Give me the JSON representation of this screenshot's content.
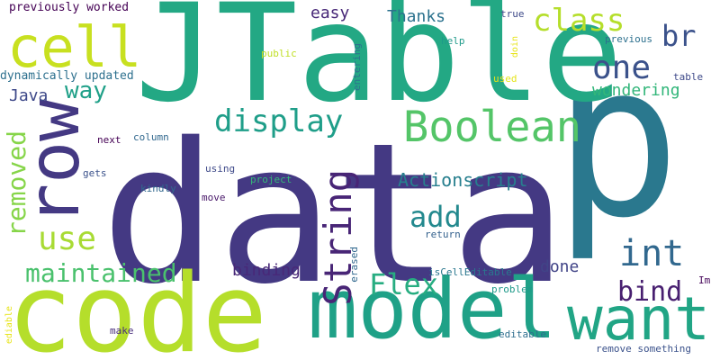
{
  "words": [
    {
      "text": "data",
      "color": "#443983"
    },
    {
      "text": "p",
      "color": "#2a788e"
    },
    {
      "text": "JTable",
      "color": "#23a884"
    },
    {
      "text": "code",
      "color": "#b5de2b"
    },
    {
      "text": "model",
      "color": "#1fa187"
    },
    {
      "text": "want",
      "color": "#21a585"
    },
    {
      "text": "row",
      "color": "#443983"
    },
    {
      "text": "cell",
      "color": "#c8e020"
    },
    {
      "text": "Boolean",
      "color": "#54c568"
    },
    {
      "text": "String",
      "color": "#482576"
    },
    {
      "text": "display",
      "color": "#1f9e89"
    },
    {
      "text": "maintained",
      "color": "#4ac16d"
    },
    {
      "text": "use",
      "color": "#a8db34"
    },
    {
      "text": "removed",
      "color": "#86d549"
    },
    {
      "text": "int",
      "color": "#31688e"
    },
    {
      "text": "bind",
      "color": "#481f70"
    },
    {
      "text": "Flex",
      "color": "#27ad81"
    },
    {
      "text": "add",
      "color": "#23898e"
    },
    {
      "text": "one",
      "color": "#3b528b"
    },
    {
      "text": "class",
      "color": "#b5de2b"
    },
    {
      "text": "br",
      "color": "#3b528b"
    },
    {
      "text": "way",
      "color": "#1fa088"
    },
    {
      "text": "Actionscript",
      "color": "#277f8e"
    },
    {
      "text": "wondering",
      "color": "#32b67a"
    },
    {
      "text": "Java",
      "color": "#3e4989"
    },
    {
      "text": "binding",
      "color": "#482878"
    },
    {
      "text": "done",
      "color": "#414487"
    },
    {
      "text": "easy",
      "color": "#482878"
    },
    {
      "text": "Thanks",
      "color": "#2c728e"
    },
    {
      "text": "previously worked",
      "color": "#440154"
    },
    {
      "text": "dynamically updated",
      "color": "#2d708e"
    },
    {
      "text": "entering",
      "color": "#2c728e"
    },
    {
      "text": "doin",
      "color": "#e7e419"
    },
    {
      "text": "true",
      "color": "#3e4a89"
    },
    {
      "text": "help",
      "color": "#1f9a8a"
    },
    {
      "text": "previous",
      "color": "#2d708e"
    },
    {
      "text": "public",
      "color": "#c0df25"
    },
    {
      "text": "used",
      "color": "#e5e419"
    },
    {
      "text": "table",
      "color": "#3e4989"
    },
    {
      "text": "next",
      "color": "#440154"
    },
    {
      "text": "column",
      "color": "#31688e"
    },
    {
      "text": "gets",
      "color": "#3b528b"
    },
    {
      "text": "using",
      "color": "#3e4989"
    },
    {
      "text": "project",
      "color": "#35b779"
    },
    {
      "text": "kindly",
      "color": "#31688e"
    },
    {
      "text": "move",
      "color": "#481769"
    },
    {
      "text": "return",
      "color": "#34618d"
    },
    {
      "text": "erased",
      "color": "#31688e"
    },
    {
      "text": "isCellEditable",
      "color": "#2a778e"
    },
    {
      "text": "Im",
      "color": "#46075a"
    },
    {
      "text": "problem",
      "color": "#1f9a8a"
    },
    {
      "text": "editable",
      "color": "#2e6e8e"
    },
    {
      "text": "make",
      "color": "#472d7b"
    },
    {
      "text": "remove something",
      "color": "#3b528b"
    },
    {
      "text": "ediable",
      "color": "#e7e419"
    }
  ]
}
